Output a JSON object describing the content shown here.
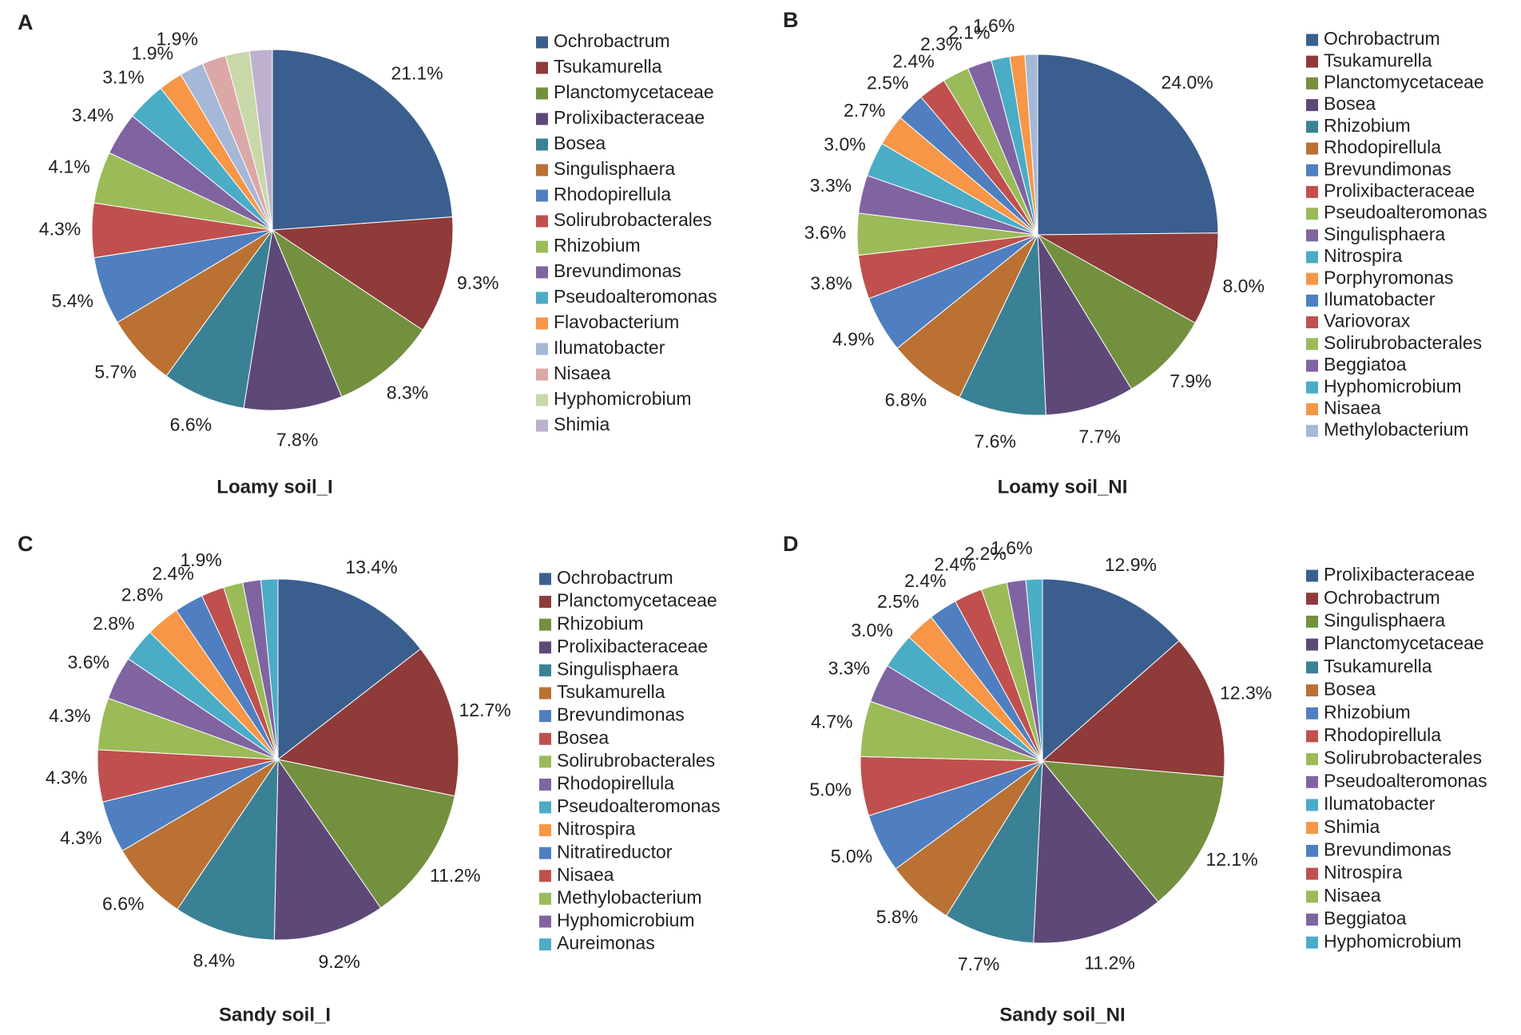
{
  "chart_data": [
    {
      "type": "pie",
      "panel": "A",
      "title": "Loamy soil_I",
      "categories": [
        "Ochrobactrum",
        "Tsukamurella",
        "Planctomycetaceae",
        "Prolixibacteraceae",
        "Bosea",
        "Singulisphaera",
        "Rhodopirellula",
        "Solirubrobacterales",
        "Rhizobium",
        "Brevundimonas",
        "Pseudoalteromonas",
        "Flavobacterium",
        "Ilumatobacter",
        "Nisaea",
        "Hyphomicrobium",
        "Shimia"
      ],
      "values": [
        21.1,
        9.3,
        8.3,
        7.8,
        6.6,
        5.7,
        5.4,
        4.3,
        4.1,
        3.4,
        3.1,
        1.9,
        1.9,
        1.9,
        1.9,
        1.8
      ],
      "value_labels": [
        "21.1%",
        "9.3%",
        "8.3%",
        "7.8%",
        "6.6%",
        "5.7%",
        "5.4%",
        "4.3%",
        "4.1%",
        "3.4%",
        "3.1%",
        "1.9%",
        "1.9%",
        null,
        null,
        null
      ],
      "colors": [
        "#3a5f8e",
        "#8e3b3a",
        "#73903f",
        "#5e4878",
        "#3a8196",
        "#ba7133",
        "#4f7fc0",
        "#c0504d",
        "#9bbb59",
        "#8064a2",
        "#4bacc6",
        "#f79646",
        "#a6b8d8",
        "#dba8a7",
        "#c9d8a8",
        "#bdb1cf"
      ]
    },
    {
      "type": "pie",
      "panel": "B",
      "title": "Loamy soil_NI",
      "categories": [
        "Ochrobactrum",
        "Tsukamurella",
        "Planctomycetaceae",
        "Bosea",
        "Rhizobium",
        "Rhodopirellula",
        "Brevundimonas",
        "Prolixibacteraceae",
        "Pseudoalteromonas",
        "Singulisphaera",
        "Nitrospira",
        "Porphyromonas",
        "Ilumatobacter",
        "Variovorax",
        "Solirubrobacterales",
        "Beggiatoa",
        "Hyphomicrobium",
        "Nisaea",
        "Methylobacterium"
      ],
      "values": [
        24.0,
        8.0,
        7.9,
        7.7,
        7.6,
        6.8,
        4.9,
        3.8,
        3.6,
        3.3,
        3.0,
        2.7,
        2.5,
        2.4,
        2.3,
        2.1,
        1.6,
        1.3,
        1.1
      ],
      "value_labels": [
        "24.0%",
        "8.0%",
        "7.9%",
        "7.7%",
        "7.6%",
        "6.8%",
        "4.9%",
        "3.8%",
        "3.6%",
        "3.3%",
        "3.0%",
        "2.7%",
        "2.5%",
        "2.4%",
        "2.3%",
        "2.1%",
        "1.6%",
        null,
        null
      ],
      "colors": [
        "#3a5f8e",
        "#8e3b3a",
        "#73903f",
        "#5e4878",
        "#3a8196",
        "#ba7133",
        "#4f7fc0",
        "#c0504d",
        "#9bbb59",
        "#8064a2",
        "#4bacc6",
        "#f79646",
        "#4f7fc0",
        "#c0504d",
        "#9bbb59",
        "#8064a2",
        "#4bacc6",
        "#f79646",
        "#a6b8d8"
      ]
    },
    {
      "type": "pie",
      "panel": "C",
      "title": "Sandy soil_I",
      "categories": [
        "Ochrobactrum",
        "Planctomycetaceae",
        "Rhizobium",
        "Prolixibacteraceae",
        "Singulisphaera",
        "Tsukamurella",
        "Brevundimonas",
        "Bosea",
        "Solirubrobacterales",
        "Rhodopirellula",
        "Pseudoalteromonas",
        "Nitrospira",
        "Nitratireductor",
        "Nisaea",
        "Methylobacterium",
        "Hyphomicrobium",
        "Aureimonas"
      ],
      "values": [
        13.4,
        12.7,
        11.2,
        9.2,
        8.4,
        6.6,
        4.3,
        4.3,
        4.3,
        3.6,
        2.8,
        2.8,
        2.4,
        1.9,
        1.6,
        1.5,
        1.4
      ],
      "value_labels": [
        "13.4%",
        "12.7%",
        "11.2%",
        "9.2%",
        "8.4%",
        "6.6%",
        "4.3%",
        "4.3%",
        "4.3%",
        "3.6%",
        "2.8%",
        "2.8%",
        "2.4%",
        "1.9%",
        null,
        null,
        null
      ],
      "colors": [
        "#3a5f8e",
        "#8e3b3a",
        "#73903f",
        "#5e4878",
        "#3a8196",
        "#ba7133",
        "#4f7fc0",
        "#c0504d",
        "#9bbb59",
        "#8064a2",
        "#4bacc6",
        "#f79646",
        "#4f7fc0",
        "#c0504d",
        "#9bbb59",
        "#8064a2",
        "#4bacc6"
      ]
    },
    {
      "type": "pie",
      "panel": "D",
      "title": "Sandy soil_NI",
      "categories": [
        "Prolixibacteraceae",
        "Ochrobactrum",
        "Singulisphaera",
        "Planctomycetaceae",
        "Tsukamurella",
        "Bosea",
        "Rhizobium",
        "Rhodopirellula",
        "Solirubrobacterales",
        "Pseudoalteromonas",
        "Ilumatobacter",
        "Shimia",
        "Brevundimonas",
        "Nitrospira",
        "Nisaea",
        "Beggiatoa",
        "Hyphomicrobium"
      ],
      "values": [
        12.9,
        12.3,
        12.1,
        11.2,
        7.7,
        5.8,
        5.0,
        5.0,
        4.7,
        3.3,
        3.0,
        2.5,
        2.4,
        2.4,
        2.2,
        1.6,
        1.4
      ],
      "value_labels": [
        "12.9%",
        "12.3%",
        "12.1%",
        "11.2%",
        "7.7%",
        "5.8%",
        "5.0%",
        "5.0%",
        "4.7%",
        "3.3%",
        "3.0%",
        "2.5%",
        "2.4%",
        "2.4%",
        "2.2%",
        "1.6%",
        null
      ],
      "colors": [
        "#3a5f8e",
        "#8e3b3a",
        "#73903f",
        "#5e4878",
        "#3a8196",
        "#ba7133",
        "#4f7fc0",
        "#c0504d",
        "#9bbb59",
        "#8064a2",
        "#4bacc6",
        "#f79646",
        "#4f7fc0",
        "#c0504d",
        "#9bbb59",
        "#8064a2",
        "#4bacc6"
      ]
    }
  ]
}
